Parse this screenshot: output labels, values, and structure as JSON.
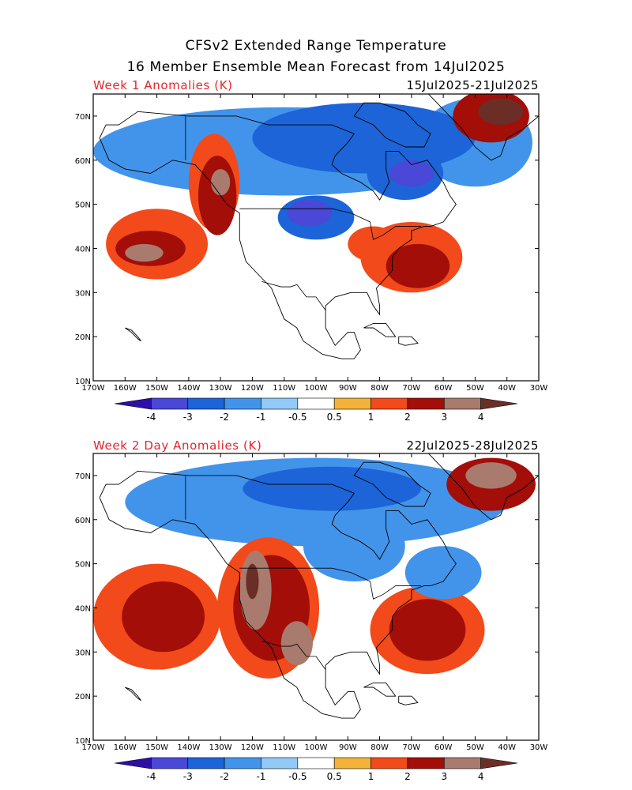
{
  "title": {
    "line1": "CFSv2 Extended Range Temperature",
    "line2": "16 Member Ensemble Mean Forecast from 14Jul2025"
  },
  "panels": [
    {
      "label": "Week 1 Anomalies (K)",
      "dates": "15Jul2025-21Jul2025",
      "blobs": [
        {
          "lon": -110,
          "lat": 62,
          "rx": 60,
          "ry": 10,
          "v": -1
        },
        {
          "lon": -85,
          "lat": 65,
          "rx": 35,
          "ry": 8,
          "v": -2
        },
        {
          "lon": -72,
          "lat": 57,
          "rx": 12,
          "ry": 6,
          "v": -2
        },
        {
          "lon": -70,
          "lat": 57,
          "rx": 7,
          "ry": 3,
          "v": -3
        },
        {
          "lon": -100,
          "lat": 47,
          "rx": 12,
          "ry": 5,
          "v": -2
        },
        {
          "lon": -102,
          "lat": 48,
          "rx": 7,
          "ry": 3,
          "v": -3
        },
        {
          "lon": -132,
          "lat": 55,
          "rx": 8,
          "ry": 11,
          "v": 1
        },
        {
          "lon": -131,
          "lat": 52,
          "rx": 6,
          "ry": 9,
          "v": 2
        },
        {
          "lon": -130,
          "lat": 55,
          "rx": 3,
          "ry": 3,
          "v": 3
        },
        {
          "lon": -150,
          "lat": 41,
          "rx": 16,
          "ry": 8,
          "v": 1
        },
        {
          "lon": -152,
          "lat": 40,
          "rx": 11,
          "ry": 4,
          "v": 2
        },
        {
          "lon": -154,
          "lat": 39,
          "rx": 6,
          "ry": 2,
          "v": 3
        },
        {
          "lon": -70,
          "lat": 38,
          "rx": 16,
          "ry": 8,
          "v": 1
        },
        {
          "lon": -68,
          "lat": 36,
          "rx": 10,
          "ry": 5,
          "v": 2
        },
        {
          "lon": -50,
          "lat": 64,
          "rx": 18,
          "ry": 10,
          "v": -1
        },
        {
          "lon": -45,
          "lat": 70,
          "rx": 12,
          "ry": 6,
          "v": 2
        },
        {
          "lon": -42,
          "lat": 71,
          "rx": 7,
          "ry": 3,
          "v": 4
        },
        {
          "lon": -82,
          "lat": 41,
          "rx": 8,
          "ry": 4,
          "v": 1
        }
      ]
    },
    {
      "label": "Week 2 Day Anomalies (K)",
      "dates": "22Jul2025-28Jul2025",
      "blobs": [
        {
          "lon": -100,
          "lat": 64,
          "rx": 60,
          "ry": 10,
          "v": -1
        },
        {
          "lon": -95,
          "lat": 67,
          "rx": 28,
          "ry": 5,
          "v": -2
        },
        {
          "lon": -88,
          "lat": 54,
          "rx": 16,
          "ry": 8,
          "v": -1
        },
        {
          "lon": -150,
          "lat": 38,
          "rx": 20,
          "ry": 12,
          "v": 1
        },
        {
          "lon": -148,
          "lat": 38,
          "rx": 13,
          "ry": 8,
          "v": 2
        },
        {
          "lon": -115,
          "lat": 40,
          "rx": 16,
          "ry": 16,
          "v": 1
        },
        {
          "lon": -114,
          "lat": 40,
          "rx": 12,
          "ry": 12,
          "v": 2
        },
        {
          "lon": -119,
          "lat": 44,
          "rx": 5,
          "ry": 9,
          "v": 3
        },
        {
          "lon": -120,
          "lat": 46,
          "rx": 2,
          "ry": 4,
          "v": 4
        },
        {
          "lon": -106,
          "lat": 32,
          "rx": 5,
          "ry": 5,
          "v": 3
        },
        {
          "lon": -65,
          "lat": 35,
          "rx": 18,
          "ry": 10,
          "v": 1
        },
        {
          "lon": -65,
          "lat": 35,
          "rx": 12,
          "ry": 7,
          "v": 2
        },
        {
          "lon": -45,
          "lat": 68,
          "rx": 14,
          "ry": 6,
          "v": 2
        },
        {
          "lon": -45,
          "lat": 70,
          "rx": 8,
          "ry": 3,
          "v": 3
        },
        {
          "lon": -60,
          "lat": 48,
          "rx": 12,
          "ry": 6,
          "v": -1
        }
      ]
    }
  ],
  "axes": {
    "lon_labels": [
      "170W",
      "160W",
      "150W",
      "140W",
      "130W",
      "120W",
      "110W",
      "100W",
      "90W",
      "80W",
      "70W",
      "60W",
      "50W",
      "40W",
      "30W"
    ],
    "lat_labels": [
      "10N",
      "20N",
      "30N",
      "40N",
      "50N",
      "60N",
      "70N"
    ]
  },
  "colorbar": {
    "tick_labels": [
      "-4",
      "-3",
      "-2",
      "-1",
      "-0.5",
      "0.5",
      "1",
      "2",
      "3",
      "4"
    ],
    "colors": [
      "#2d0fa8",
      "#4a48d6",
      "#1c64d8",
      "#4294ea",
      "#92c9f7",
      "#ffffff",
      "#f4b23a",
      "#f24a1a",
      "#a30e08",
      "#a87b6e",
      "#6b2e27"
    ]
  },
  "map_data": {
    "region": "North America and adjacent oceans",
    "lon_range": [
      -170,
      -30
    ],
    "lat_range": [
      10,
      75
    ],
    "levels": [
      -4,
      -3,
      -2,
      -1,
      -0.5,
      0.5,
      1,
      2,
      3,
      4
    ]
  }
}
